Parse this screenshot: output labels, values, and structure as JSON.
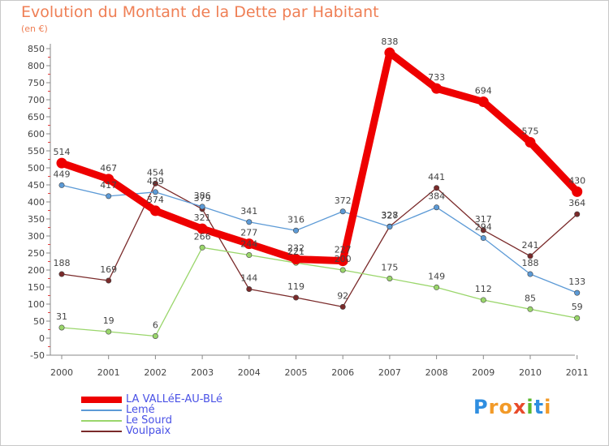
{
  "header": {
    "title": "Evolution du Montant de la Dette par Habitant",
    "subtitle": "(en €)"
  },
  "logo": {
    "letters": [
      "P",
      "r",
      "o",
      "x",
      "i",
      "t",
      "i"
    ],
    "colors": [
      "#2f8ee0",
      "#f29a28",
      "#f29a28",
      "#e84a2a",
      "#5ab82e",
      "#2f8ee0",
      "#f29a28"
    ]
  },
  "chart_data": {
    "type": "line",
    "x": [
      "2000",
      "2001",
      "2002",
      "2003",
      "2004",
      "2005",
      "2006",
      "2007",
      "2008",
      "2009",
      "2010",
      "2011"
    ],
    "ylim": [
      -50,
      850
    ],
    "yticks": [
      -50,
      0,
      50,
      100,
      150,
      200,
      250,
      300,
      350,
      400,
      450,
      500,
      550,
      600,
      650,
      700,
      750,
      800,
      850
    ],
    "grid": false,
    "legend_position": "bottom-left",
    "series": [
      {
        "name": "LA VALLéE-AU-BLé",
        "color": "#ee0000",
        "values": [
          514,
          467,
          374,
          321,
          277,
          232,
          227,
          838,
          733,
          694,
          575,
          430
        ]
      },
      {
        "name": "Lemé",
        "color": "#5c9ad6",
        "values": [
          449,
          417,
          429,
          386,
          341,
          316,
          372,
          327,
          384,
          294,
          188,
          133
        ]
      },
      {
        "name": "Le Sourd",
        "color": "#9ad66b",
        "values": [
          31,
          19,
          6,
          266,
          244,
          221,
          200,
          175,
          149,
          112,
          85,
          59
        ]
      },
      {
        "name": "Voulpaix",
        "color": "#7a2a2a",
        "values": [
          188,
          169,
          454,
          379,
          144,
          119,
          92,
          328,
          441,
          317,
          241,
          364
        ]
      }
    ]
  }
}
